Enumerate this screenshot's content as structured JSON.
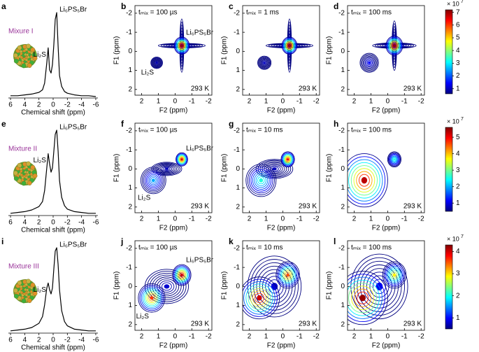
{
  "chart_data": [
    {
      "type": "line",
      "panel_label": "a",
      "title": "Mixure I",
      "xlabel": "Chemical shift (ppm)",
      "xlim": [
        6.3,
        -6.3
      ],
      "xticks": [
        6,
        4,
        2,
        0,
        -2,
        -4,
        -6
      ],
      "x": [
        6,
        5,
        4,
        3,
        2,
        1.5,
        1.2,
        0.9,
        0.7,
        0.5,
        0.3,
        0.1,
        -0.1,
        -0.3,
        -0.5,
        -0.7,
        -0.9,
        -1.2,
        -1.6,
        -2,
        -3,
        -4,
        -5,
        -6
      ],
      "values": [
        1,
        1,
        2,
        3,
        5,
        8,
        16,
        40,
        58,
        32,
        28,
        38,
        62,
        92,
        100,
        60,
        25,
        12,
        6,
        4,
        2,
        1,
        1,
        0
      ],
      "color": "#000000",
      "annotations": [
        {
          "text": "Li₂S",
          "x": 0.7
        },
        {
          "text": "Li₆PS₅Br",
          "x": -0.5
        }
      ]
    },
    {
      "type": "contour",
      "panel_label": "b",
      "annotation": "tₘᵢₓ = 100 µs",
      "temperature": "293 K",
      "xlabel": "F2 (ppm)",
      "ylabel": "F1 (ppm)",
      "xlim": [
        2.4,
        -2.2
      ],
      "ylim": [
        -2.4,
        2.3
      ],
      "xticks": [
        2,
        1,
        0,
        -1,
        -2
      ],
      "yticks": [
        -2,
        -1,
        0,
        1,
        2
      ],
      "peaks": [
        {
          "x": -0.4,
          "y": -0.3,
          "rx": 1.4,
          "ry": 0.12,
          "z": 1.2
        },
        {
          "x": -0.4,
          "y": -0.3,
          "rx": 0.12,
          "ry": 1.4,
          "z": 1.2
        },
        {
          "x": -0.4,
          "y": -0.3,
          "rx": 0.45,
          "ry": 0.45,
          "z": 7,
          "label": "Li₆PS₅Br"
        },
        {
          "x": 1.1,
          "y": 0.6,
          "rx": 0.35,
          "ry": 0.3,
          "z": 0.9,
          "label": "Li₂S"
        }
      ]
    },
    {
      "type": "contour",
      "panel_label": "c",
      "annotation": "tₘᵢₓ = 1 ms",
      "temperature": "293 K",
      "xlabel": "F2 (ppm)",
      "ylabel": "F1 (ppm)",
      "xlim": [
        2.4,
        -2.2
      ],
      "ylim": [
        -2.4,
        2.3
      ],
      "xticks": [
        2,
        1,
        0,
        -1,
        -2
      ],
      "yticks": [
        -2,
        -1,
        0,
        1,
        2
      ],
      "peaks": [
        {
          "x": -0.4,
          "y": -0.3,
          "rx": 1.4,
          "ry": 0.12,
          "z": 1.2
        },
        {
          "x": -0.4,
          "y": -0.3,
          "rx": 0.12,
          "ry": 1.4,
          "z": 1.2
        },
        {
          "x": -0.4,
          "y": -0.3,
          "rx": 0.45,
          "ry": 0.45,
          "z": 7
        },
        {
          "x": 1.1,
          "y": 0.6,
          "rx": 0.4,
          "ry": 0.35,
          "z": 1.0
        }
      ]
    },
    {
      "type": "contour",
      "panel_label": "d",
      "annotation": "tₘᵢₓ = 100 ms",
      "temperature": "293 K",
      "xlabel": "F2 (ppm)",
      "ylabel": "F1 (ppm)",
      "xlim": [
        2.4,
        -2.2
      ],
      "ylim": [
        -2.4,
        2.3
      ],
      "xticks": [
        2,
        1,
        0,
        -1,
        -2
      ],
      "yticks": [
        -2,
        -1,
        0,
        1,
        2
      ],
      "clim": [
        0.6,
        7.2
      ],
      "cticks": [
        1,
        2,
        3,
        4,
        5,
        6,
        7
      ],
      "colorbar_label": "× 10",
      "colorbar_exponent": "7",
      "peaks": [
        {
          "x": -0.4,
          "y": -0.3,
          "rx": 1.3,
          "ry": 0.14,
          "z": 1.4
        },
        {
          "x": -0.4,
          "y": -0.3,
          "rx": 0.14,
          "ry": 1.3,
          "z": 1.4
        },
        {
          "x": -0.4,
          "y": -0.3,
          "rx": 0.5,
          "ry": 0.5,
          "z": 7
        },
        {
          "x": 1.1,
          "y": 0.6,
          "rx": 0.55,
          "ry": 0.5,
          "z": 1.4
        }
      ]
    },
    {
      "type": "line",
      "panel_label": "e",
      "title": "Mixture II",
      "xlabel": "Chemical shift (ppm)",
      "xlim": [
        6.3,
        -6.3
      ],
      "xticks": [
        6,
        4,
        2,
        0,
        -2,
        -4,
        -6
      ],
      "x": [
        6,
        5,
        4,
        3,
        2,
        1.5,
        1.2,
        0.9,
        0.7,
        0.5,
        0.3,
        0.1,
        -0.1,
        -0.3,
        -0.5,
        -0.7,
        -0.9,
        -1.2,
        -1.6,
        -2,
        -3,
        -4,
        -5,
        -6
      ],
      "values": [
        1,
        2,
        3,
        5,
        9,
        15,
        28,
        55,
        72,
        60,
        50,
        55,
        75,
        95,
        100,
        75,
        40,
        20,
        10,
        6,
        3,
        2,
        1,
        1
      ],
      "color": "#000000",
      "annotations": [
        {
          "text": "Li₂S",
          "x": 0.7
        },
        {
          "text": "Li₆PS₅Br",
          "x": -0.5
        }
      ]
    },
    {
      "type": "contour",
      "panel_label": "f",
      "annotation": "tₘᵢₓ = 100 µs",
      "temperature": "293 K",
      "xlabel": "F2 (ppm)",
      "ylabel": "F1 (ppm)",
      "xlim": [
        2.4,
        -2.2
      ],
      "ylim": [
        -2.4,
        2.3
      ],
      "xticks": [
        2,
        1,
        0,
        -1,
        -2
      ],
      "yticks": [
        -2,
        -1,
        0,
        1,
        2
      ],
      "peaks": [
        {
          "x": 0.5,
          "y": 0,
          "rx": 0.9,
          "ry": 0.35,
          "z": 0.8
        },
        {
          "x": 1.3,
          "y": 0.6,
          "rx": 0.75,
          "ry": 0.7,
          "z": 2,
          "label": "Li₂S"
        },
        {
          "x": -0.4,
          "y": -0.5,
          "rx": 0.35,
          "ry": 0.35,
          "z": 5.2,
          "label": "Li₆PS₅Br"
        }
      ]
    },
    {
      "type": "contour",
      "panel_label": "g",
      "annotation": "tₘᵢₓ = 10 ms",
      "temperature": "293 K",
      "xlabel": "F2 (ppm)",
      "ylabel": "F1 (ppm)",
      "xlim": [
        2.4,
        -2.2
      ],
      "ylim": [
        -2.4,
        2.3
      ],
      "xticks": [
        2,
        1,
        0,
        -1,
        -2
      ],
      "yticks": [
        -2,
        -1,
        0,
        1,
        2
      ],
      "peaks": [
        {
          "x": 0.5,
          "y": 0,
          "rx": 1.1,
          "ry": 0.5,
          "z": 0.8
        },
        {
          "x": 1.3,
          "y": 0.6,
          "rx": 0.9,
          "ry": 0.85,
          "z": 2.6
        },
        {
          "x": -0.3,
          "y": -0.5,
          "rx": 0.4,
          "ry": 0.4,
          "z": 5
        }
      ]
    },
    {
      "type": "contour",
      "panel_label": "h",
      "annotation": "tₘᵢₓ = 100 ms",
      "temperature": "293 K",
      "xlabel": "F2 (ppm)",
      "ylabel": "F1 (ppm)",
      "xlim": [
        2.4,
        -2.2
      ],
      "ylim": [
        -2.4,
        2.3
      ],
      "xticks": [
        2,
        1,
        0,
        -1,
        -2
      ],
      "yticks": [
        -2,
        -1,
        0,
        1,
        2
      ],
      "clim": [
        0.5,
        5.6
      ],
      "cticks": [
        1,
        2,
        3,
        4,
        5
      ],
      "colorbar_label": "× 10",
      "colorbar_exponent": "7",
      "peaks": [
        {
          "x": 1.4,
          "y": 0.6,
          "rx": 1.4,
          "ry": 1.4,
          "z": 5.3
        },
        {
          "x": -0.4,
          "y": -0.5,
          "rx": 0.4,
          "ry": 0.4,
          "z": 2.6
        }
      ]
    },
    {
      "type": "line",
      "panel_label": "i",
      "title": "Mixture III",
      "xlabel": "Chemical shift (ppm)",
      "xlim": [
        6.3,
        -6.3
      ],
      "xticks": [
        6,
        4,
        2,
        0,
        -2,
        -4,
        -6
      ],
      "x": [
        6,
        5,
        4,
        3,
        2,
        1.5,
        1.2,
        0.9,
        0.7,
        0.5,
        0.3,
        0.1,
        -0.1,
        -0.3,
        -0.5,
        -0.7,
        -0.9,
        -1.2,
        -1.6,
        -2,
        -3,
        -4,
        -5,
        -6
      ],
      "values": [
        1,
        2,
        3,
        5,
        10,
        18,
        32,
        52,
        58,
        50,
        45,
        52,
        75,
        96,
        100,
        80,
        50,
        25,
        12,
        7,
        3,
        2,
        1,
        1
      ],
      "color": "#000000",
      "annotations": [
        {
          "text": "Li₂S",
          "x": 0.7
        },
        {
          "text": "Li₆PS₅Br",
          "x": -0.5
        }
      ]
    },
    {
      "type": "contour",
      "panel_label": "j",
      "annotation": "tₘᵢₓ = 100 µs",
      "temperature": "293 K",
      "xlabel": "F2 (ppm)",
      "ylabel": "F1 (ppm)",
      "xlim": [
        2.4,
        -2.2
      ],
      "ylim": [
        -2.4,
        2.3
      ],
      "xticks": [
        2,
        1,
        0,
        -1,
        -2
      ],
      "yticks": [
        -2,
        -1,
        0,
        1,
        2
      ],
      "peaks": [
        {
          "x": 0.5,
          "y": 0,
          "rx": 1.3,
          "ry": 0.9,
          "z": 0.8
        },
        {
          "x": 1.4,
          "y": 0.6,
          "rx": 0.8,
          "ry": 0.75,
          "z": 3.6,
          "label": "Li₂S"
        },
        {
          "x": -0.4,
          "y": -0.6,
          "rx": 0.55,
          "ry": 0.55,
          "z": 4,
          "label": "Li₆PS₅Br"
        }
      ]
    },
    {
      "type": "contour",
      "panel_label": "k",
      "annotation": "tₘᵢₓ = 10 ms",
      "temperature": "293 K",
      "xlabel": "F2 (ppm)",
      "ylabel": "F1 (ppm)",
      "xlim": [
        2.4,
        -2.2
      ],
      "ylim": [
        -2.4,
        2.3
      ],
      "xticks": [
        2,
        1,
        0,
        -1,
        -2
      ],
      "yticks": [
        -2,
        -1,
        0,
        1,
        2
      ],
      "peaks": [
        {
          "x": 0.5,
          "y": 0,
          "rx": 1.6,
          "ry": 1.6,
          "z": 0.8
        },
        {
          "x": 1.4,
          "y": 0.6,
          "rx": 1.2,
          "ry": 1.1,
          "z": 4
        },
        {
          "x": -0.3,
          "y": -0.6,
          "rx": 0.7,
          "ry": 0.7,
          "z": 3.5
        }
      ]
    },
    {
      "type": "contour",
      "panel_label": "l",
      "annotation": "tₘᵢₓ = 100 ms",
      "temperature": "293 K",
      "xlabel": "F2 (ppm)",
      "ylabel": "F1 (ppm)",
      "xlim": [
        2.4,
        -2.2
      ],
      "ylim": [
        -2.4,
        2.3
      ],
      "xticks": [
        2,
        1,
        0,
        -1,
        -2
      ],
      "yticks": [
        -2,
        -1,
        0,
        1,
        2
      ],
      "clim": [
        0.5,
        4.3
      ],
      "cticks": [
        1,
        2,
        3,
        4
      ],
      "colorbar_label": "× 10",
      "colorbar_exponent": "7",
      "peaks": [
        {
          "x": 0.5,
          "y": 0,
          "rx": 1.7,
          "ry": 1.7,
          "z": 0.9
        },
        {
          "x": 1.5,
          "y": 0.6,
          "rx": 1.5,
          "ry": 1.4,
          "z": 4.2
        },
        {
          "x": -0.4,
          "y": -0.6,
          "rx": 0.7,
          "ry": 0.7,
          "z": 2.9
        }
      ]
    }
  ]
}
